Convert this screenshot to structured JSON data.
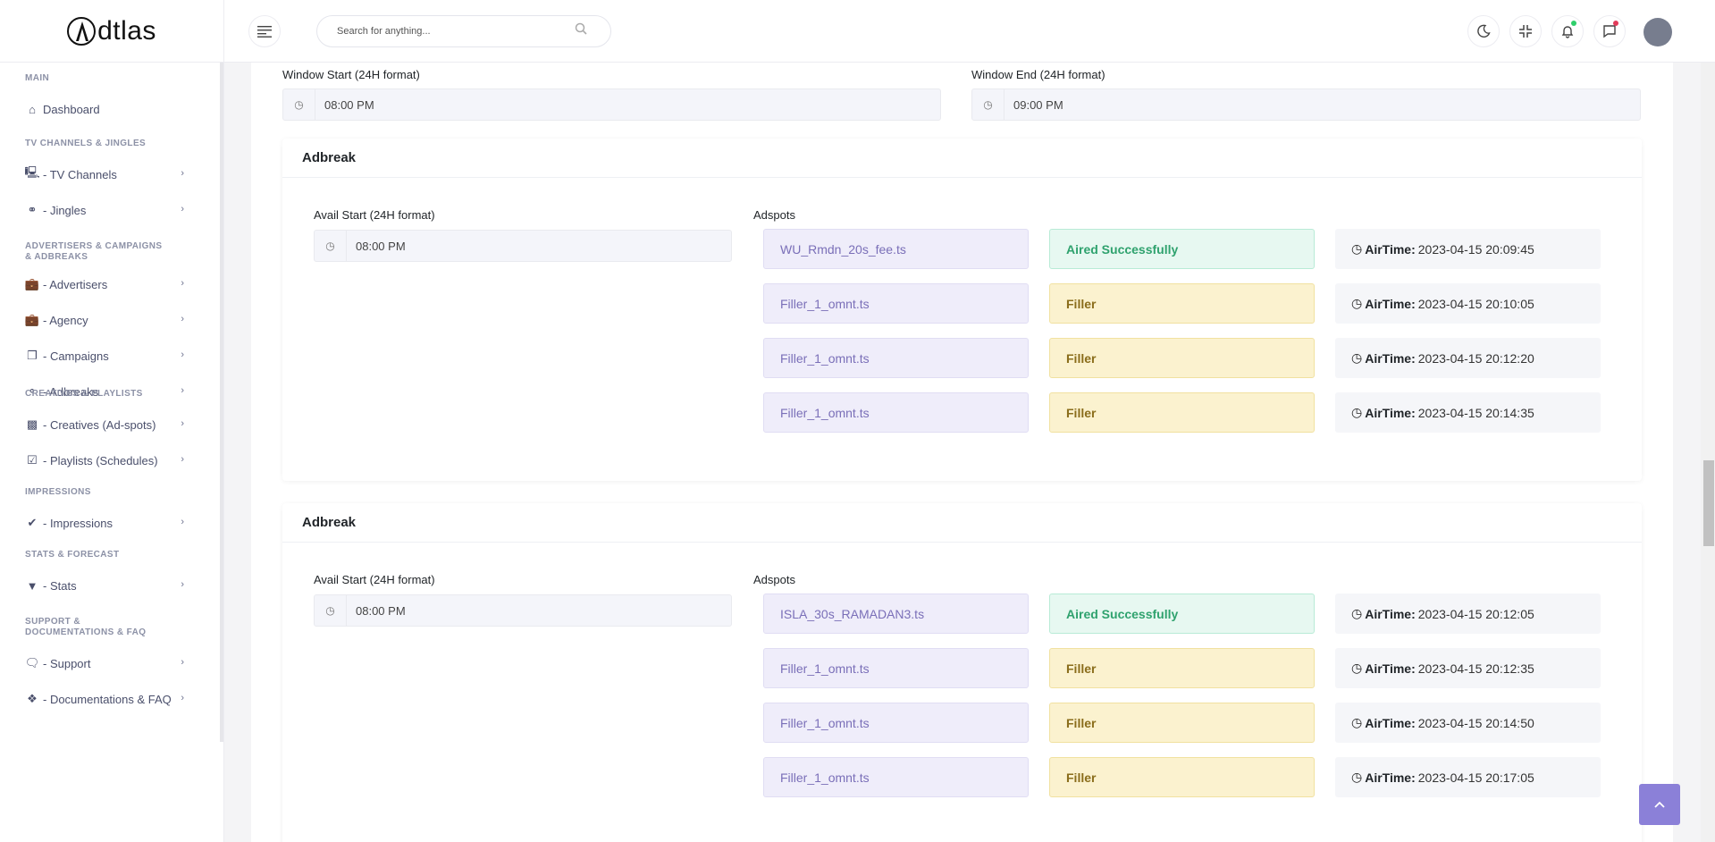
{
  "app": {
    "logo_text": "dtlas"
  },
  "header": {
    "search_placeholder": "Search for anything...",
    "search_value": ""
  },
  "sidebar": {
    "sections": [
      {
        "title": "MAIN",
        "items": [
          {
            "label": "Dashboard",
            "icon": "home-icon",
            "chevron": false
          }
        ]
      },
      {
        "title": "TV CHANNELS & JINGLES",
        "items": [
          {
            "label": "- TV Channels",
            "icon": "monitor-icon",
            "chevron": true
          },
          {
            "label": "- Jingles",
            "icon": "fingerprint-icon",
            "chevron": true
          }
        ]
      },
      {
        "title": "ADVERTISERS & CAMPAIGNS & ADBREAKS",
        "items": [
          {
            "label": "- Advertisers",
            "icon": "briefcase-check-icon",
            "chevron": true
          },
          {
            "label": "- Agency",
            "icon": "briefcase-check-icon",
            "chevron": true
          },
          {
            "label": "- Campaigns",
            "icon": "copy-icon",
            "chevron": true
          },
          {
            "label": "- Adbreaks",
            "icon": "tag-icon",
            "chevron": true
          }
        ]
      },
      {
        "title": "CREATIVES & PLAYLISTS",
        "items": [
          {
            "label": "- Creatives (Ad-spots)",
            "icon": "file-video-icon",
            "chevron": true
          },
          {
            "label": "- Playlists (Schedules)",
            "icon": "calendar-check-icon",
            "chevron": true
          }
        ]
      },
      {
        "title": "IMPRESSIONS",
        "items": [
          {
            "label": "- Impressions",
            "icon": "check-icon",
            "chevron": true
          }
        ]
      },
      {
        "title": "STATS & FORECAST",
        "items": [
          {
            "label": "- Stats",
            "icon": "filter-icon",
            "chevron": true
          }
        ]
      },
      {
        "title": "SUPPORT & DOCUMENTATIONS & FAQ",
        "items": [
          {
            "label": "- Support",
            "icon": "chat-icon",
            "chevron": true
          },
          {
            "label": "- Documentations & FAQ",
            "icon": "cubes-icon",
            "chevron": true
          }
        ]
      }
    ]
  },
  "window": {
    "start_label": "Window Start (24H format)",
    "start_value": "08:00 PM",
    "end_label": "Window End (24H format)",
    "end_value": "09:00 PM"
  },
  "adbreaks": [
    {
      "title": "Adbreak",
      "avail_label": "Avail Start (24H format)",
      "avail_value": "08:00 PM",
      "adspots_label": "Adspots",
      "spots": [
        {
          "file": "WU_Rmdn_20s_fee.ts",
          "status": "Aired Successfully",
          "type": "ok",
          "airtime_label": "AirTime:",
          "airtime": "2023-04-15 20:09:45"
        },
        {
          "file": "Filler_1_omnt.ts",
          "status": "Filler",
          "type": "filler",
          "airtime_label": "AirTime:",
          "airtime": "2023-04-15 20:10:05"
        },
        {
          "file": "Filler_1_omnt.ts",
          "status": "Filler",
          "type": "filler",
          "airtime_label": "AirTime:",
          "airtime": "2023-04-15 20:12:20"
        },
        {
          "file": "Filler_1_omnt.ts",
          "status": "Filler",
          "type": "filler",
          "airtime_label": "AirTime:",
          "airtime": "2023-04-15 20:14:35"
        }
      ]
    },
    {
      "title": "Adbreak",
      "avail_label": "Avail Start (24H format)",
      "avail_value": "08:00 PM",
      "adspots_label": "Adspots",
      "spots": [
        {
          "file": "ISLA_30s_RAMADAN3.ts",
          "status": "Aired Successfully",
          "type": "ok",
          "airtime_label": "AirTime:",
          "airtime": "2023-04-15 20:12:05"
        },
        {
          "file": "Filler_1_omnt.ts",
          "status": "Filler",
          "type": "filler",
          "airtime_label": "AirTime:",
          "airtime": "2023-04-15 20:12:35"
        },
        {
          "file": "Filler_1_omnt.ts",
          "status": "Filler",
          "type": "filler",
          "airtime_label": "AirTime:",
          "airtime": "2023-04-15 20:14:50"
        },
        {
          "file": "Filler_1_omnt.ts",
          "status": "Filler",
          "type": "filler",
          "airtime_label": "AirTime:",
          "airtime": "2023-04-15 20:17:05"
        }
      ]
    }
  ],
  "colors": {
    "accent": "#8b80d8",
    "aired_bg": "#e7f8f1",
    "filler_bg": "#fbf2cf",
    "spot_bg": "#efedfa",
    "notification_dot": "#2fcf6b",
    "message_dot": "#e23b5a"
  }
}
